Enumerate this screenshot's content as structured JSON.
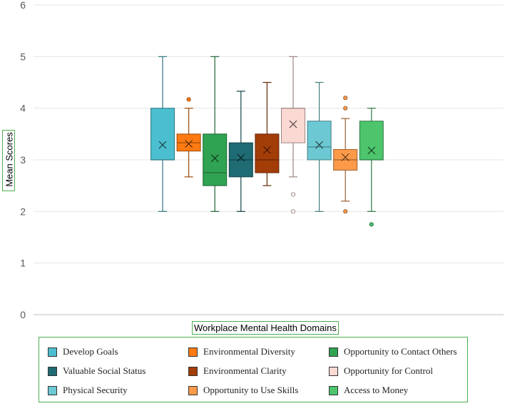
{
  "chart_data": {
    "type": "box",
    "title": "",
    "xlabel": "Workplace Mental Health Domains",
    "ylabel": "Mean Scores",
    "ylim": [
      0,
      6
    ],
    "yticks": [
      "0",
      "1",
      "2",
      "3",
      "4",
      "5",
      "6"
    ],
    "grid": true,
    "legend_position": "bottom",
    "series": [
      {
        "name": "Develop Goals",
        "color": "#4bbfcf",
        "min": 2,
        "q1": 3,
        "median": 3,
        "q3": 4,
        "max": 5,
        "mean": 3.29,
        "outliers": []
      },
      {
        "name": "Environmental  Diversity",
        "color": "#ff7a12",
        "min": 2.67,
        "q1": 3.17,
        "median": 3.33,
        "q3": 3.5,
        "max": 4,
        "mean": 3.31,
        "outliers": [
          4.17
        ]
      },
      {
        "name": "Opportunity to Contact Others",
        "color": "#2fa352",
        "min": 2,
        "q1": 2.5,
        "median": 2.75,
        "q3": 3.5,
        "max": 5,
        "mean": 3.03,
        "outliers": []
      },
      {
        "name": "Valuable Social Status",
        "color": "#1f6b74",
        "min": 2,
        "q1": 2.67,
        "median": 3,
        "q3": 3.33,
        "max": 4.33,
        "mean": 3.04,
        "outliers": []
      },
      {
        "name": "Environmental  Clarity",
        "color": "#a33d08",
        "min": 2.5,
        "q1": 2.75,
        "median": 3,
        "q3": 3.5,
        "max": 4.5,
        "mean": 3.19,
        "outliers": []
      },
      {
        "name": "Opportunity for Control",
        "color": "#fbd9d3",
        "min": 2.67,
        "q1": 3.33,
        "median": 4,
        "q3": 4,
        "max": 5,
        "mean": 3.69,
        "outliers": [
          2.33,
          2
        ]
      },
      {
        "name": "Physical Security",
        "color": "#6cc9d4",
        "min": 2,
        "q1": 3,
        "median": 3.25,
        "q3": 3.75,
        "max": 4.5,
        "mean": 3.29,
        "outliers": []
      },
      {
        "name": "Opportunity to Use Skills",
        "color": "#fd9a4a",
        "min": 2.2,
        "q1": 2.8,
        "median": 3,
        "q3": 3.2,
        "max": 3.8,
        "mean": 3.05,
        "outliers": [
          4.2,
          4,
          2
        ]
      },
      {
        "name": "Access to Money",
        "color": "#4cc56d",
        "min": 2,
        "q1": 3,
        "median": 3,
        "q3": 3.75,
        "max": 4,
        "mean": 3.18,
        "outliers": [
          1.75
        ]
      }
    ]
  }
}
